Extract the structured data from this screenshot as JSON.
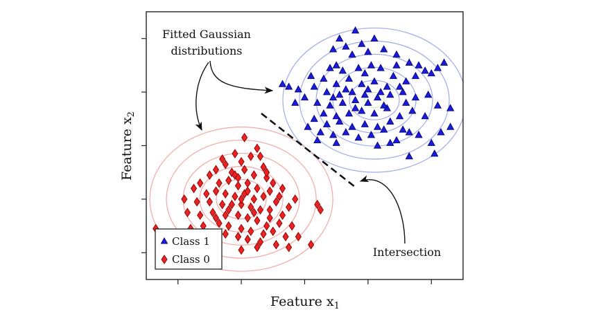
{
  "chart_data": {
    "type": "scatter",
    "title": "",
    "xlabel": "Feature x",
    "xlabel_sub": "1",
    "ylabel": "Feature x",
    "ylabel_sub": "2",
    "xlim": [
      0,
      10
    ],
    "ylim": [
      0,
      10
    ],
    "grid": false,
    "tick_labels_shown": false,
    "x_ticks": [
      1,
      3,
      5,
      7,
      9
    ],
    "y_ticks": [
      1,
      3,
      5,
      7,
      9
    ],
    "legend": {
      "placement": "bottom-left",
      "entries": [
        {
          "label": "Class 1",
          "marker": "triangle",
          "color": "#1010dd"
        },
        {
          "label": "Class 0",
          "marker": "diamond",
          "color": "#e01818"
        }
      ]
    },
    "series": [
      {
        "name": "Class 1",
        "marker": "triangle",
        "color": "#1010dd",
        "points": [
          [
            6.1,
            9.0
          ],
          [
            6.6,
            9.3
          ],
          [
            7.2,
            9.0
          ],
          [
            7.5,
            8.6
          ],
          [
            7.9,
            8.4
          ],
          [
            5.9,
            8.6
          ],
          [
            6.3,
            8.7
          ],
          [
            6.8,
            8.8
          ],
          [
            7.0,
            8.5
          ],
          [
            6.5,
            8.4
          ],
          [
            8.3,
            8.1
          ],
          [
            8.6,
            8.0
          ],
          [
            8.8,
            7.8
          ],
          [
            9.2,
            7.9
          ],
          [
            9.4,
            8.1
          ],
          [
            9.0,
            7.7
          ],
          [
            8.5,
            7.6
          ],
          [
            8.2,
            7.4
          ],
          [
            7.8,
            7.6
          ],
          [
            7.4,
            7.9
          ],
          [
            7.1,
            8.0
          ],
          [
            6.7,
            7.9
          ],
          [
            6.2,
            7.8
          ],
          [
            5.8,
            7.9
          ],
          [
            5.6,
            7.5
          ],
          [
            6.0,
            7.3
          ],
          [
            6.4,
            7.5
          ],
          [
            6.8,
            7.3
          ],
          [
            7.2,
            7.4
          ],
          [
            7.6,
            7.2
          ],
          [
            4.5,
            7.2
          ],
          [
            4.8,
            7.1
          ],
          [
            5.3,
            7.2
          ],
          [
            5.7,
            7.0
          ],
          [
            6.1,
            6.9
          ],
          [
            6.5,
            7.0
          ],
          [
            6.9,
            6.9
          ],
          [
            7.3,
            6.8
          ],
          [
            7.7,
            6.9
          ],
          [
            8.1,
            7.0
          ],
          [
            8.5,
            6.8
          ],
          [
            8.9,
            6.9
          ],
          [
            7.0,
            7.1
          ],
          [
            6.6,
            6.7
          ],
          [
            6.2,
            6.6
          ],
          [
            5.8,
            6.5
          ],
          [
            5.4,
            6.6
          ],
          [
            5.0,
            6.8
          ],
          [
            4.7,
            6.6
          ],
          [
            5.6,
            6.2
          ],
          [
            6.0,
            6.1
          ],
          [
            6.4,
            6.2
          ],
          [
            6.8,
            6.3
          ],
          [
            7.2,
            6.2
          ],
          [
            7.6,
            6.4
          ],
          [
            8.0,
            6.1
          ],
          [
            8.4,
            6.3
          ],
          [
            8.8,
            6.1
          ],
          [
            9.2,
            6.5
          ],
          [
            9.6,
            6.4
          ],
          [
            5.3,
            6.0
          ],
          [
            5.7,
            5.8
          ],
          [
            6.1,
            5.9
          ],
          [
            6.5,
            5.7
          ],
          [
            6.9,
            5.8
          ],
          [
            7.3,
            5.7
          ],
          [
            7.7,
            5.9
          ],
          [
            8.1,
            5.6
          ],
          [
            5.1,
            5.7
          ],
          [
            5.5,
            5.5
          ],
          [
            5.9,
            5.4
          ],
          [
            6.3,
            5.5
          ],
          [
            6.7,
            5.3
          ],
          [
            7.1,
            5.4
          ],
          [
            7.5,
            5.6
          ],
          [
            7.9,
            5.2
          ],
          [
            8.3,
            5.5
          ],
          [
            5.4,
            5.2
          ],
          [
            6.0,
            5.1
          ],
          [
            7.3,
            5.0
          ],
          [
            7.7,
            5.1
          ],
          [
            8.6,
            5.4
          ],
          [
            9.0,
            5.1
          ],
          [
            7.0,
            6.6
          ],
          [
            6.3,
            7.1
          ],
          [
            7.4,
            7.0
          ],
          [
            6.9,
            7.7
          ],
          [
            7.9,
            8.0
          ],
          [
            8.0,
            7.2
          ],
          [
            9.6,
            5.7
          ],
          [
            9.3,
            5.5
          ],
          [
            4.3,
            7.3
          ],
          [
            8.3,
            4.6
          ],
          [
            9.1,
            4.7
          ],
          [
            6.0,
            8.0
          ],
          [
            5.2,
            7.6
          ],
          [
            6.6,
            6.4
          ],
          [
            7.5,
            6.5
          ],
          [
            8.2,
            6.6
          ],
          [
            5.9,
            6.8
          ]
        ]
      },
      {
        "name": "Class 0",
        "marker": "diamond",
        "color": "#e01818",
        "points": [
          [
            3.1,
            5.3
          ],
          [
            3.5,
            4.9
          ],
          [
            2.8,
            4.7
          ],
          [
            3.0,
            4.4
          ],
          [
            3.3,
            4.6
          ],
          [
            3.7,
            4.2
          ],
          [
            2.5,
            4.3
          ],
          [
            2.2,
            4.1
          ],
          [
            2.7,
            4.0
          ],
          [
            3.1,
            4.1
          ],
          [
            3.4,
            3.9
          ],
          [
            3.8,
            3.8
          ],
          [
            4.0,
            3.6
          ],
          [
            2.0,
            3.9
          ],
          [
            1.7,
            3.6
          ],
          [
            2.3,
            3.6
          ],
          [
            2.6,
            3.7
          ],
          [
            2.9,
            3.5
          ],
          [
            3.2,
            3.6
          ],
          [
            3.5,
            3.4
          ],
          [
            3.9,
            3.3
          ],
          [
            4.2,
            3.1
          ],
          [
            1.5,
            3.4
          ],
          [
            1.9,
            3.2
          ],
          [
            2.2,
            3.3
          ],
          [
            2.5,
            3.2
          ],
          [
            2.8,
            3.1
          ],
          [
            3.1,
            3.2
          ],
          [
            3.4,
            3.0
          ],
          [
            3.7,
            3.1
          ],
          [
            4.1,
            2.9
          ],
          [
            4.5,
            2.7
          ],
          [
            1.2,
            3.0
          ],
          [
            1.6,
            2.9
          ],
          [
            2.0,
            2.9
          ],
          [
            2.4,
            2.8
          ],
          [
            2.7,
            2.8
          ],
          [
            3.0,
            2.8
          ],
          [
            3.3,
            2.7
          ],
          [
            3.6,
            2.6
          ],
          [
            3.9,
            2.6
          ],
          [
            4.3,
            2.4
          ],
          [
            5.4,
            2.8
          ],
          [
            5.5,
            2.6
          ],
          [
            1.3,
            2.5
          ],
          [
            1.7,
            2.4
          ],
          [
            2.1,
            2.5
          ],
          [
            2.5,
            2.4
          ],
          [
            2.9,
            2.4
          ],
          [
            3.2,
            2.3
          ],
          [
            3.5,
            2.2
          ],
          [
            3.9,
            2.3
          ],
          [
            4.2,
            2.1
          ],
          [
            4.6,
            2.0
          ],
          [
            1.8,
            2.0
          ],
          [
            2.3,
            2.1
          ],
          [
            2.6,
            2.0
          ],
          [
            3.0,
            1.9
          ],
          [
            3.3,
            1.8
          ],
          [
            3.7,
            1.7
          ],
          [
            4.0,
            1.8
          ],
          [
            4.4,
            1.6
          ],
          [
            2.0,
            1.7
          ],
          [
            2.5,
            1.7
          ],
          [
            2.9,
            1.6
          ],
          [
            3.2,
            1.5
          ],
          [
            3.6,
            1.4
          ],
          [
            4.1,
            1.3
          ],
          [
            4.5,
            1.2
          ],
          [
            3.0,
            1.1
          ],
          [
            3.5,
            1.2
          ],
          [
            4.8,
            1.6
          ],
          [
            5.2,
            1.3
          ],
          [
            0.3,
            1.9
          ],
          [
            0.8,
            1.6
          ],
          [
            1.2,
            1.4
          ],
          [
            2.8,
            3.9
          ],
          [
            3.6,
            4.6
          ],
          [
            2.4,
            4.5
          ],
          [
            3.8,
            4.0
          ],
          [
            3.2,
            3.3
          ],
          [
            2.6,
            2.6
          ],
          [
            3.4,
            2.5
          ],
          [
            4.3,
            3.4
          ],
          [
            4.7,
            3.0
          ],
          [
            1.4,
            1.9
          ],
          [
            2.2,
            2.3
          ],
          [
            3.8,
            2.0
          ],
          [
            2.9,
            3.8
          ],
          [
            3.0,
            3.0
          ]
        ]
      }
    ],
    "gaussians": [
      {
        "class": "Class 1",
        "center": [
          7.2,
          6.7
        ],
        "contour_color": "#7f8ee6",
        "inner_color": "#bfe6a0"
      },
      {
        "class": "Class 0",
        "center": [
          3.0,
          3.0
        ],
        "contour_color": "#f08a84",
        "inner_color": "#f6c3a6"
      }
    ],
    "decision_boundary": {
      "style": "dashed",
      "from": [
        3.6,
        6.1
      ],
      "to": [
        6.3,
        3.5
      ]
    },
    "annotations": [
      {
        "id": "fitted",
        "text_lines": [
          "Fitted Gaussian",
          "distributions"
        ]
      },
      {
        "id": "intersection",
        "text_lines": [
          "Intersection"
        ]
      }
    ]
  }
}
